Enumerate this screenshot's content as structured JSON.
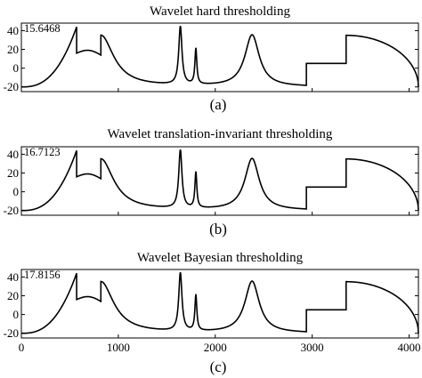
{
  "colors": {
    "true_signal": "#000000",
    "estimate": "#e32020"
  },
  "chart_data": [
    {
      "type": "line",
      "title": "Wavelet hard thresholding",
      "caption": "(a)",
      "annotation": "15.6468",
      "xlim": [
        0,
        4096
      ],
      "ylim": [
        -25,
        48
      ],
      "yticks": [
        40,
        20,
        0,
        -20
      ],
      "xticks": [],
      "series": [],
      "noise_seed": 11,
      "noise_level": 1.6
    },
    {
      "type": "line",
      "title": "Wavelet translation-invariant thresholding",
      "caption": "(b)",
      "annotation": "16.7123",
      "xlim": [
        0,
        4096
      ],
      "ylim": [
        -25,
        48
      ],
      "yticks": [
        40,
        20,
        0,
        -20
      ],
      "xticks": [],
      "series": [],
      "noise_seed": 23,
      "noise_level": 1.1
    },
    {
      "type": "line",
      "title": "Wavelet Bayesian thresholding",
      "caption": "(c)",
      "annotation": "17.8156",
      "xlim": [
        0,
        4096
      ],
      "ylim": [
        -25,
        48
      ],
      "yticks": [
        40,
        20,
        0,
        -20
      ],
      "xticks": [
        0,
        1000,
        2000,
        3000,
        4000
      ],
      "xtick_labels": [
        "0",
        "1000",
        "2000",
        "3000",
        "4000"
      ],
      "series": [],
      "noise_seed": 37,
      "noise_level": 0.8
    }
  ]
}
